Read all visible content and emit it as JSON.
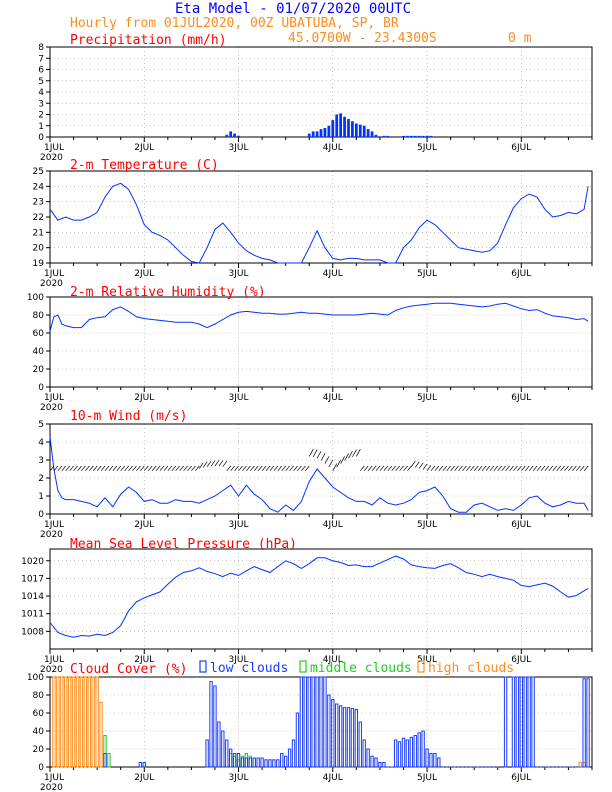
{
  "header": {
    "title": "Eta Model - 01/07/2020 00UTC",
    "subtitle": "Hourly from 01JUL2020, 00Z  UBATUBA, SP, BR",
    "coords": "45.0700W - 23.4300S",
    "elevation": "0  m"
  },
  "colors": {
    "title": "#0000ff",
    "subtitle": "#ff8c1a",
    "panel_title": "#ff0000",
    "series": "#0033ff",
    "low_clouds": "#1a3cff",
    "middle_clouds": "#22cc22",
    "high_clouds": "#ff8c1a",
    "grid": "#999999"
  },
  "chart_data": [
    {
      "id": "precip",
      "type": "bar",
      "title": "Precipitation (mm/h)",
      "ylim": [
        0,
        8
      ],
      "yticks": [
        "0",
        "1",
        "2",
        "3",
        "4",
        "5",
        "6",
        "7",
        "8"
      ],
      "xlabels": [
        "1JUL",
        "2JUL",
        "3JUL",
        "4JUL",
        "5JUL",
        "6JUL"
      ],
      "year_label": "2020",
      "x": [
        45,
        46,
        47,
        48,
        66,
        67,
        68,
        69,
        70,
        71,
        72,
        73,
        74,
        75,
        76,
        77,
        78,
        79,
        80,
        81,
        82,
        83,
        85,
        86,
        90,
        91,
        92,
        93,
        94,
        95,
        96,
        97
      ],
      "values": [
        0.2,
        0.5,
        0.3,
        0.1,
        0.3,
        0.5,
        0.5,
        0.7,
        0.8,
        1.0,
        1.5,
        2.0,
        2.1,
        1.8,
        1.6,
        1.4,
        1.2,
        1.1,
        1.0,
        0.7,
        0.5,
        0.2,
        0.1,
        0.1,
        0.1,
        0.1,
        0.1,
        0.1,
        0.1,
        0.1,
        0.1,
        0.1
      ]
    },
    {
      "id": "temp",
      "type": "line",
      "title": "2-m Temperature (C)",
      "ylim": [
        19,
        25
      ],
      "yticks": [
        "19",
        "20",
        "21",
        "22",
        "23",
        "24",
        "25"
      ],
      "xlabels": [
        "1JUL",
        "2JUL",
        "3JUL",
        "4JUL",
        "5JUL",
        "6JUL"
      ],
      "year_label": "2020",
      "x": [
        0,
        2,
        4,
        6,
        8,
        10,
        12,
        14,
        16,
        18,
        20,
        22,
        24,
        26,
        28,
        30,
        32,
        34,
        36,
        38,
        40,
        42,
        44,
        46,
        48,
        50,
        52,
        54,
        56,
        58,
        60,
        62,
        64,
        66,
        68,
        70,
        72,
        74,
        76,
        78,
        80,
        82,
        84,
        86,
        88,
        90,
        92,
        94,
        96,
        98,
        100,
        102,
        104,
        106,
        108,
        110,
        112,
        114,
        116,
        118,
        120,
        122,
        124,
        126,
        128,
        130,
        132,
        134,
        136,
        137
      ],
      "values": [
        22.5,
        21.8,
        22.0,
        21.8,
        21.8,
        22.0,
        22.3,
        23.3,
        24.0,
        24.2,
        23.8,
        22.8,
        21.5,
        21.0,
        20.8,
        20.5,
        20.0,
        19.5,
        19.1,
        19.0,
        20.0,
        21.2,
        21.6,
        21.0,
        20.3,
        19.8,
        19.5,
        19.3,
        19.2,
        19.0,
        19.0,
        19.0,
        19.0,
        20.0,
        21.1,
        20.0,
        19.3,
        19.2,
        19.3,
        19.3,
        19.2,
        19.2,
        19.2,
        19.0,
        19.0,
        20.0,
        20.5,
        21.3,
        21.8,
        21.5,
        21.0,
        20.5,
        20.0,
        19.9,
        19.8,
        19.7,
        19.8,
        20.3,
        21.5,
        22.6,
        23.2,
        23.5,
        23.3,
        22.5,
        22.0,
        22.1,
        22.3,
        22.2,
        22.5,
        24.0
      ]
    },
    {
      "id": "rh",
      "type": "line",
      "title": "2-m Relative Humidity (%)",
      "ylim": [
        0,
        100
      ],
      "yticks": [
        "0",
        "20",
        "40",
        "60",
        "80",
        "100"
      ],
      "xlabels": [
        "1JUL",
        "2JUL",
        "3JUL",
        "4JUL",
        "5JUL",
        "6JUL"
      ],
      "year_label": "2020",
      "x": [
        0,
        1,
        2,
        3,
        4,
        6,
        8,
        10,
        12,
        14,
        16,
        18,
        20,
        22,
        24,
        26,
        28,
        30,
        32,
        34,
        36,
        38,
        40,
        42,
        44,
        46,
        48,
        50,
        52,
        54,
        56,
        58,
        60,
        62,
        64,
        66,
        68,
        70,
        72,
        74,
        76,
        78,
        80,
        82,
        84,
        86,
        88,
        90,
        92,
        94,
        96,
        98,
        100,
        102,
        104,
        106,
        108,
        110,
        112,
        114,
        116,
        118,
        120,
        122,
        124,
        126,
        128,
        130,
        132,
        134,
        136,
        137
      ],
      "values": [
        62,
        78,
        80,
        70,
        68,
        66,
        66,
        75,
        77,
        78,
        86,
        89,
        84,
        78,
        76,
        75,
        74,
        73,
        72,
        72,
        72,
        70,
        66,
        70,
        75,
        80,
        83,
        84,
        83,
        82,
        82,
        81,
        81,
        82,
        83,
        82,
        82,
        81,
        80,
        80,
        80,
        80,
        81,
        82,
        81,
        80,
        85,
        88,
        90,
        91,
        92,
        93,
        93,
        93,
        92,
        91,
        90,
        89,
        90,
        92,
        93,
        90,
        87,
        85,
        86,
        82,
        79,
        78,
        77,
        75,
        76,
        73
      ]
    },
    {
      "id": "wind",
      "type": "line",
      "title": "10-m Wind (m/s)",
      "ylim": [
        0,
        5
      ],
      "yticks": [
        "0",
        "1",
        "2",
        "3",
        "4",
        "5"
      ],
      "xlabels": [
        "1JUL",
        "2JUL",
        "3JUL",
        "4JUL",
        "5JUL",
        "6JUL"
      ],
      "year_label": "2020",
      "x": [
        0,
        1,
        2,
        3,
        4,
        6,
        8,
        10,
        12,
        14,
        16,
        18,
        20,
        22,
        24,
        26,
        28,
        30,
        32,
        34,
        36,
        38,
        40,
        42,
        44,
        46,
        48,
        50,
        52,
        54,
        56,
        58,
        60,
        62,
        64,
        66,
        68,
        70,
        72,
        74,
        76,
        78,
        80,
        82,
        84,
        86,
        88,
        90,
        92,
        94,
        96,
        98,
        100,
        102,
        104,
        106,
        108,
        110,
        112,
        114,
        116,
        118,
        120,
        122,
        124,
        126,
        128,
        130,
        132,
        134,
        136,
        137
      ],
      "values": [
        4.3,
        2.5,
        1.3,
        0.9,
        0.8,
        0.8,
        0.7,
        0.6,
        0.4,
        0.9,
        0.4,
        1.1,
        1.5,
        1.2,
        0.7,
        0.8,
        0.6,
        0.6,
        0.8,
        0.7,
        0.7,
        0.6,
        0.8,
        1.0,
        1.3,
        1.6,
        1.0,
        1.6,
        1.1,
        0.8,
        0.3,
        0.1,
        0.5,
        0.2,
        0.7,
        1.8,
        2.5,
        2.0,
        1.5,
        1.2,
        0.9,
        0.7,
        0.7,
        0.5,
        0.9,
        0.6,
        0.5,
        0.6,
        0.8,
        1.2,
        1.3,
        1.5,
        1.0,
        0.3,
        0.1,
        0.1,
        0.5,
        0.6,
        0.4,
        0.2,
        0.3,
        0.2,
        0.5,
        0.9,
        1.0,
        0.6,
        0.4,
        0.5,
        0.7,
        0.6,
        0.6,
        0.2
      ]
    },
    {
      "id": "mslp",
      "type": "line",
      "title": "Mean Sea Level Pressure (hPa)",
      "ylim": [
        1005,
        1022
      ],
      "yticks": [
        "1008",
        "1011",
        "1014",
        "1017",
        "1020"
      ],
      "ytick_values": [
        1008,
        1011,
        1014,
        1017,
        1020
      ],
      "xlabels": [
        "1JUL",
        "2JUL",
        "3JUL",
        "4JUL",
        "5JUL",
        "6JUL"
      ],
      "year_label": "2020",
      "x": [
        0,
        2,
        4,
        6,
        8,
        10,
        12,
        14,
        16,
        18,
        20,
        22,
        24,
        26,
        28,
        30,
        32,
        34,
        36,
        38,
        40,
        42,
        44,
        46,
        48,
        50,
        52,
        54,
        56,
        58,
        60,
        62,
        64,
        66,
        68,
        70,
        72,
        74,
        76,
        78,
        80,
        82,
        84,
        86,
        88,
        90,
        92,
        94,
        96,
        98,
        100,
        102,
        104,
        106,
        108,
        110,
        112,
        114,
        116,
        118,
        120,
        122,
        124,
        126,
        128,
        130,
        132,
        134,
        136,
        137
      ],
      "values": [
        1009.5,
        1007.8,
        1007.3,
        1007.0,
        1007.3,
        1007.2,
        1007.5,
        1007.3,
        1007.8,
        1009.0,
        1011.5,
        1013.0,
        1013.7,
        1014.2,
        1014.7,
        1016.0,
        1017.2,
        1018.0,
        1018.3,
        1018.8,
        1018.2,
        1017.8,
        1017.3,
        1017.9,
        1017.5,
        1018.3,
        1019.0,
        1018.5,
        1018.0,
        1019.0,
        1020.0,
        1019.5,
        1018.7,
        1019.5,
        1020.5,
        1020.5,
        1020.0,
        1019.7,
        1019.2,
        1019.3,
        1019.0,
        1019.0,
        1019.6,
        1020.2,
        1020.8,
        1020.3,
        1019.3,
        1019.0,
        1018.8,
        1018.7,
        1019.2,
        1019.5,
        1018.8,
        1018.0,
        1017.7,
        1017.3,
        1017.7,
        1017.3,
        1017.0,
        1016.7,
        1015.8,
        1015.6,
        1015.9,
        1016.2,
        1015.7,
        1014.7,
        1013.8,
        1014.1,
        1014.9,
        1015.3
      ]
    },
    {
      "id": "cloud",
      "type": "bar",
      "title": "Cloud Cover (%)",
      "legend": [
        "low clouds",
        "middle clouds",
        "high clouds"
      ],
      "ylim": [
        0,
        100
      ],
      "yticks": [
        "0",
        "20",
        "40",
        "60",
        "80",
        "100"
      ],
      "xlabels": [
        "1JUL",
        "2JUL",
        "3JUL",
        "4JUL",
        "5JUL",
        "6JUL"
      ],
      "year_label": "2020",
      "series": [
        {
          "name": "high clouds",
          "x": [
            1,
            2,
            3,
            4,
            5,
            6,
            7,
            8,
            9,
            10,
            11,
            12,
            13,
            135,
            136
          ],
          "values": [
            100,
            100,
            100,
            100,
            100,
            100,
            100,
            100,
            100,
            100,
            100,
            100,
            72,
            5,
            5
          ]
        },
        {
          "name": "middle clouds",
          "x": [
            14,
            15,
            46,
            47,
            48,
            49,
            50,
            51,
            52
          ],
          "values": [
            35,
            15,
            15,
            12,
            8,
            12,
            15,
            12,
            10
          ]
        },
        {
          "name": "low clouds",
          "x": [
            14,
            23,
            24,
            40,
            41,
            42,
            43,
            44,
            45,
            46,
            47,
            48,
            49,
            50,
            51,
            52,
            53,
            54,
            55,
            56,
            57,
            58,
            59,
            60,
            61,
            62,
            63,
            64,
            65,
            66,
            67,
            68,
            69,
            70,
            71,
            72,
            73,
            74,
            75,
            76,
            77,
            78,
            79,
            80,
            81,
            82,
            83,
            84,
            85,
            86,
            87,
            88,
            89,
            90,
            91,
            92,
            93,
            94,
            95,
            96,
            97,
            98,
            99,
            100,
            101,
            102,
            103,
            104,
            105,
            106,
            107,
            108,
            109,
            110,
            111,
            112,
            113,
            114,
            116,
            118,
            119,
            120,
            121,
            122,
            123,
            124,
            125,
            126,
            127,
            128,
            129,
            130,
            131,
            132,
            133,
            134,
            135,
            136,
            137
          ],
          "values": [
            15,
            5,
            5,
            30,
            95,
            90,
            50,
            40,
            30,
            20,
            15,
            15,
            10,
            10,
            10,
            10,
            10,
            10,
            8,
            8,
            8,
            8,
            15,
            12,
            20,
            30,
            60,
            100,
            100,
            100,
            100,
            100,
            100,
            100,
            80,
            75,
            70,
            68,
            66,
            66,
            65,
            64,
            50,
            30,
            20,
            12,
            10,
            5,
            5,
            0,
            0,
            30,
            28,
            32,
            30,
            33,
            35,
            38,
            40,
            20,
            15,
            15,
            10,
            0,
            0,
            0,
            0,
            0,
            0,
            0,
            0,
            0,
            0,
            0,
            0,
            0,
            0,
            0,
            100,
            100,
            100,
            100,
            100,
            100,
            100,
            0,
            0,
            0,
            0,
            0,
            0,
            0,
            0,
            0,
            0,
            0,
            0,
            98,
            98
          ]
        }
      ]
    }
  ]
}
